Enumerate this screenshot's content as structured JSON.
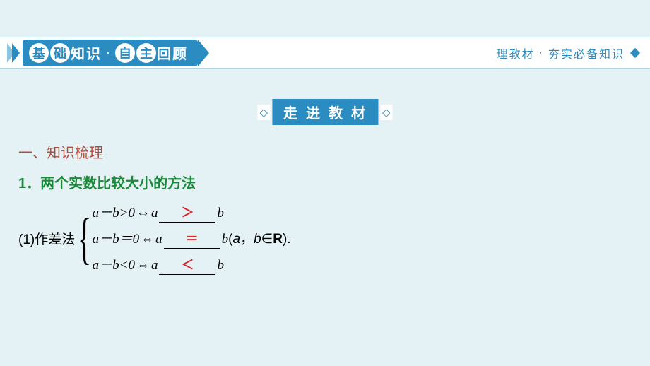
{
  "colors": {
    "page_bg": "#e5f2f5",
    "accent": "#2a8cc0",
    "accent_light": "#8cc5de",
    "white": "#ffffff",
    "heading_brown": "#b44a3a",
    "heading_green": "#1a8a3a",
    "answer_red": "#d8262c",
    "text_black": "#000000"
  },
  "header": {
    "circle1": "基",
    "circle2": "础",
    "word1": "知识",
    "sep": "·",
    "circle3": "自",
    "circle4": "主",
    "word2": "回顾",
    "right1": "理教材",
    "right_sep": "·",
    "right2": "夯实必备知识"
  },
  "sub_banner": {
    "left_end": "◇",
    "title": "走进教材",
    "right_end": "◇"
  },
  "content": {
    "section_heading": "一、知识梳理",
    "item_heading": "1．两个实数比较大小的方法",
    "method_label": "(1)作差法",
    "cases": [
      {
        "lhs": "a－b>0",
        "iff": "⇔",
        "var_a": "a",
        "answer": "＞",
        "var_b": "b",
        "tail": ""
      },
      {
        "lhs": "a－b＝0",
        "iff": "⇔",
        "var_a": "a",
        "answer": "＝",
        "var_b": "b",
        "tail": "(a，b∈R)."
      },
      {
        "lhs": "a－b<0",
        "iff": "⇔",
        "var_a": "a",
        "answer": "＜",
        "var_b": "b",
        "tail": ""
      }
    ]
  },
  "typography": {
    "header_title_fontsize": 20,
    "body_fontsize": 19,
    "answer_fontsize": 18,
    "brace_fontsize": 80
  }
}
